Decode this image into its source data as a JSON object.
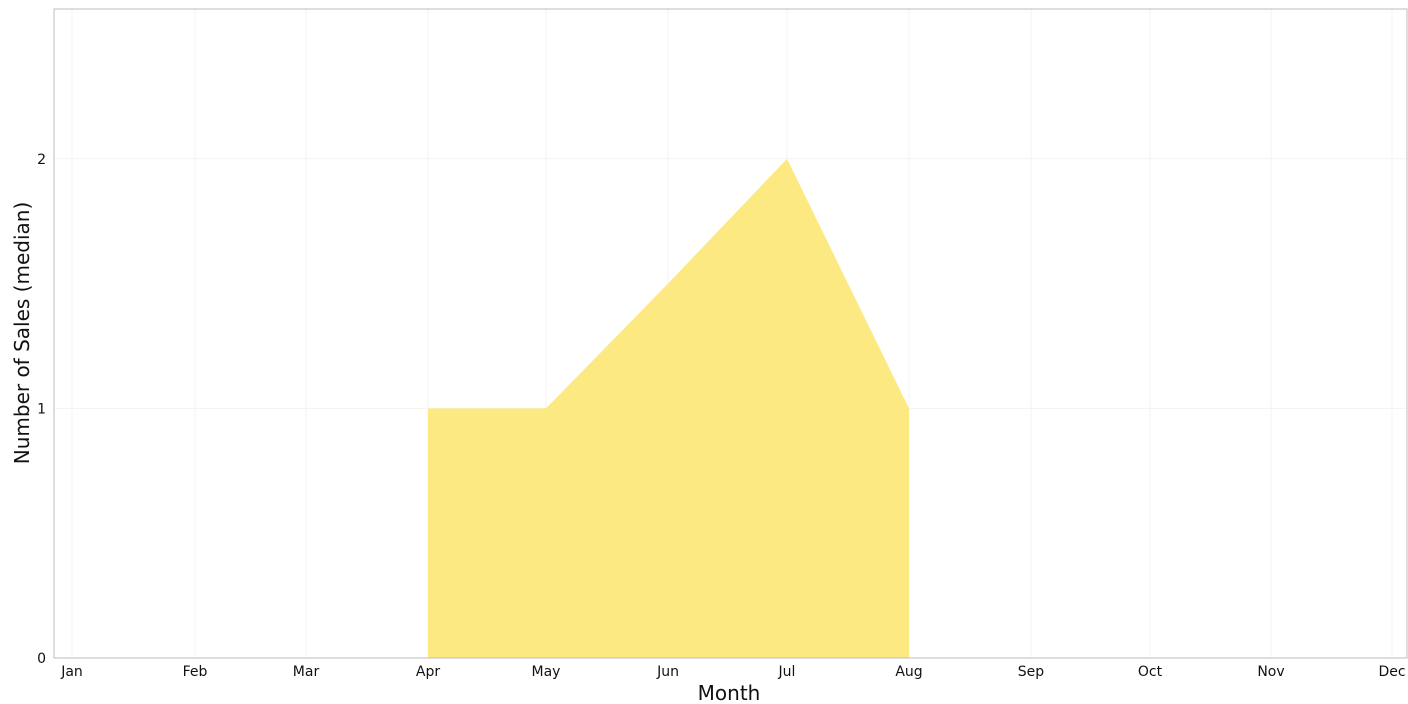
{
  "chart_data": {
    "type": "area",
    "title": "",
    "xlabel": "Month",
    "ylabel": "Number of Sales (median)",
    "categories": [
      "Jan",
      "Feb",
      "Mar",
      "Apr",
      "May",
      "Jun",
      "Jul",
      "Aug",
      "Sep",
      "Oct",
      "Nov",
      "Dec"
    ],
    "series": [
      {
        "x": [
          "Apr",
          "May",
          "Jun",
          "Jul",
          "Aug"
        ],
        "values": [
          1,
          1,
          1.5,
          2,
          1
        ],
        "color": "#fde982"
      }
    ],
    "ylim": [
      0,
      2.6
    ],
    "yticks": [
      "0",
      "1",
      "2"
    ],
    "grid": true,
    "legend": "none"
  }
}
